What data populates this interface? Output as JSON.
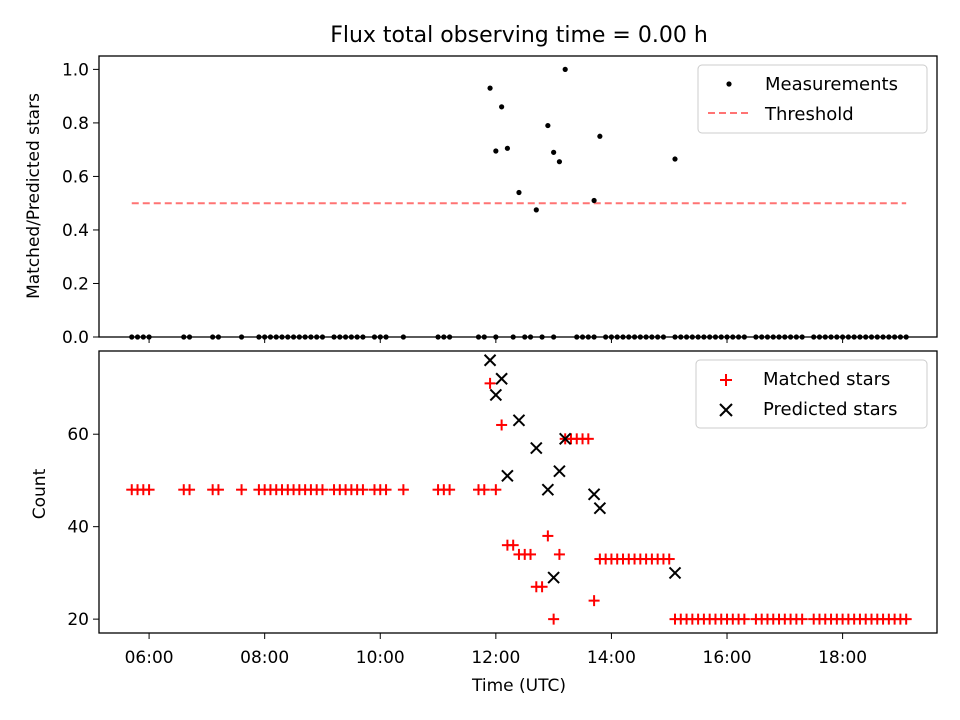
{
  "figure": {
    "title": "Flux total observing time = 0.00 h",
    "xlabel": "Time (UTC)",
    "x_ticks": [
      "06:00",
      "08:00",
      "10:00",
      "12:00",
      "14:00",
      "16:00",
      "18:00"
    ]
  },
  "chart_data": [
    {
      "type": "scatter",
      "xlabel": "Time (UTC)",
      "ylabel": "Matched/Predicted stars",
      "xlim": [
        "05:08",
        "19:38"
      ],
      "ylim": [
        0.0,
        1.05
      ],
      "y_ticks": [
        "0.0",
        "0.2",
        "0.4",
        "0.6",
        "0.8",
        "1.0"
      ],
      "grid": false,
      "legend_position": "top-right",
      "legend": [
        "Measurements",
        "Threshold"
      ],
      "colors": {
        "measurements": "#000000",
        "threshold": "#ff7373"
      },
      "series": [
        {
          "name": "Measurements",
          "marker": "dot",
          "points": [
            [
              "05:42",
              0
            ],
            [
              "05:48",
              0
            ],
            [
              "05:54",
              0
            ],
            [
              "06:00",
              0
            ],
            [
              "06:36",
              0
            ],
            [
              "06:42",
              0
            ],
            [
              "07:06",
              0
            ],
            [
              "07:12",
              0
            ],
            [
              "07:36",
              0
            ],
            [
              "07:54",
              0
            ],
            [
              "08:00",
              0
            ],
            [
              "08:06",
              0
            ],
            [
              "08:12",
              0
            ],
            [
              "08:18",
              0
            ],
            [
              "08:24",
              0
            ],
            [
              "08:30",
              0
            ],
            [
              "08:36",
              0
            ],
            [
              "08:42",
              0
            ],
            [
              "08:48",
              0
            ],
            [
              "08:54",
              0
            ],
            [
              "09:00",
              0
            ],
            [
              "09:12",
              0
            ],
            [
              "09:18",
              0
            ],
            [
              "09:24",
              0
            ],
            [
              "09:30",
              0
            ],
            [
              "09:36",
              0
            ],
            [
              "09:42",
              0
            ],
            [
              "09:54",
              0
            ],
            [
              "10:00",
              0
            ],
            [
              "10:06",
              0
            ],
            [
              "10:24",
              0
            ],
            [
              "11:00",
              0
            ],
            [
              "11:06",
              0
            ],
            [
              "11:12",
              0
            ],
            [
              "11:42",
              0
            ],
            [
              "11:48",
              0
            ],
            [
              "12:00",
              0
            ],
            [
              "11:54",
              0.93
            ],
            [
              "12:00",
              0.695
            ],
            [
              "12:06",
              0.86
            ],
            [
              "12:12",
              0.705
            ],
            [
              "12:24",
              0.54
            ],
            [
              "12:42",
              0.475
            ],
            [
              "12:54",
              0.79
            ],
            [
              "13:00",
              0.69
            ],
            [
              "13:06",
              0.655
            ],
            [
              "13:12",
              1.0
            ],
            [
              "13:42",
              0.51
            ],
            [
              "13:48",
              0.75
            ],
            [
              "15:06",
              0.665
            ],
            [
              "12:18",
              0
            ],
            [
              "12:30",
              0
            ],
            [
              "12:36",
              0
            ],
            [
              "12:48",
              0
            ],
            [
              "13:00",
              0
            ],
            [
              "13:24",
              0
            ],
            [
              "13:30",
              0
            ],
            [
              "13:36",
              0
            ],
            [
              "13:42",
              0
            ],
            [
              "13:54",
              0
            ],
            [
              "14:00",
              0
            ],
            [
              "14:06",
              0
            ],
            [
              "14:12",
              0
            ],
            [
              "14:18",
              0
            ],
            [
              "14:24",
              0
            ],
            [
              "14:30",
              0
            ],
            [
              "14:36",
              0
            ],
            [
              "14:42",
              0
            ],
            [
              "14:48",
              0
            ],
            [
              "14:54",
              0
            ],
            [
              "15:06",
              0
            ],
            [
              "15:12",
              0
            ],
            [
              "15:18",
              0
            ],
            [
              "15:24",
              0
            ],
            [
              "15:30",
              0
            ],
            [
              "15:36",
              0
            ],
            [
              "15:42",
              0
            ],
            [
              "15:48",
              0
            ],
            [
              "15:54",
              0
            ],
            [
              "16:00",
              0
            ],
            [
              "16:06",
              0
            ],
            [
              "16:12",
              0
            ],
            [
              "16:18",
              0
            ],
            [
              "16:30",
              0
            ],
            [
              "16:36",
              0
            ],
            [
              "16:42",
              0
            ],
            [
              "16:48",
              0
            ],
            [
              "16:54",
              0
            ],
            [
              "17:00",
              0
            ],
            [
              "17:06",
              0
            ],
            [
              "17:12",
              0
            ],
            [
              "17:18",
              0
            ],
            [
              "17:30",
              0
            ],
            [
              "17:36",
              0
            ],
            [
              "17:42",
              0
            ],
            [
              "17:48",
              0
            ],
            [
              "17:54",
              0
            ],
            [
              "18:00",
              0
            ],
            [
              "18:06",
              0
            ],
            [
              "18:12",
              0
            ],
            [
              "18:18",
              0
            ],
            [
              "18:24",
              0
            ],
            [
              "18:30",
              0
            ],
            [
              "18:36",
              0
            ],
            [
              "18:42",
              0
            ],
            [
              "18:48",
              0
            ],
            [
              "18:54",
              0
            ],
            [
              "19:00",
              0
            ],
            [
              "19:06",
              0
            ]
          ]
        },
        {
          "name": "Threshold",
          "style": "dashed",
          "points": [
            [
              "05:42",
              0.5
            ],
            [
              "19:06",
              0.5
            ]
          ]
        }
      ]
    },
    {
      "type": "scatter",
      "xlabel": "Time (UTC)",
      "ylabel": "Count",
      "xlim": [
        "05:08",
        "19:38"
      ],
      "ylim": [
        17,
        78
      ],
      "y_ticks": [
        "20",
        "40",
        "60"
      ],
      "grid": false,
      "legend_position": "top-right",
      "legend": [
        "Matched stars",
        "Predicted stars"
      ],
      "colors": {
        "matched": "#ff0000",
        "predicted": "#000000"
      },
      "series": [
        {
          "name": "Matched stars",
          "marker": "plus",
          "points": [
            [
              "05:42",
              48
            ],
            [
              "05:48",
              48
            ],
            [
              "05:54",
              48
            ],
            [
              "06:00",
              48
            ],
            [
              "06:36",
              48
            ],
            [
              "06:42",
              48
            ],
            [
              "07:06",
              48
            ],
            [
              "07:12",
              48
            ],
            [
              "07:36",
              48
            ],
            [
              "07:54",
              48
            ],
            [
              "08:00",
              48
            ],
            [
              "08:06",
              48
            ],
            [
              "08:12",
              48
            ],
            [
              "08:18",
              48
            ],
            [
              "08:24",
              48
            ],
            [
              "08:30",
              48
            ],
            [
              "08:36",
              48
            ],
            [
              "08:42",
              48
            ],
            [
              "08:48",
              48
            ],
            [
              "08:54",
              48
            ],
            [
              "09:00",
              48
            ],
            [
              "09:12",
              48
            ],
            [
              "09:18",
              48
            ],
            [
              "09:24",
              48
            ],
            [
              "09:30",
              48
            ],
            [
              "09:36",
              48
            ],
            [
              "09:42",
              48
            ],
            [
              "09:54",
              48
            ],
            [
              "10:00",
              48
            ],
            [
              "10:06",
              48
            ],
            [
              "10:24",
              48
            ],
            [
              "11:00",
              48
            ],
            [
              "11:06",
              48
            ],
            [
              "11:12",
              48
            ],
            [
              "11:42",
              48
            ],
            [
              "11:48",
              48
            ],
            [
              "12:00",
              48
            ],
            [
              "11:54",
              71
            ],
            [
              "12:06",
              62
            ],
            [
              "12:12",
              36
            ],
            [
              "12:18",
              36
            ],
            [
              "12:24",
              34
            ],
            [
              "12:30",
              34
            ],
            [
              "12:36",
              34
            ],
            [
              "12:42",
              27
            ],
            [
              "12:48",
              27
            ],
            [
              "12:54",
              38
            ],
            [
              "13:00",
              20
            ],
            [
              "13:06",
              34
            ],
            [
              "13:12",
              59
            ],
            [
              "13:18",
              59
            ],
            [
              "13:24",
              59
            ],
            [
              "13:30",
              59
            ],
            [
              "13:36",
              59
            ],
            [
              "13:42",
              24
            ],
            [
              "13:48",
              33
            ],
            [
              "13:54",
              33
            ],
            [
              "14:00",
              33
            ],
            [
              "14:06",
              33
            ],
            [
              "14:12",
              33
            ],
            [
              "14:18",
              33
            ],
            [
              "14:24",
              33
            ],
            [
              "14:30",
              33
            ],
            [
              "14:36",
              33
            ],
            [
              "14:42",
              33
            ],
            [
              "14:48",
              33
            ],
            [
              "14:54",
              33
            ],
            [
              "15:00",
              33
            ],
            [
              "15:06",
              20
            ],
            [
              "15:12",
              20
            ],
            [
              "15:18",
              20
            ],
            [
              "15:24",
              20
            ],
            [
              "15:30",
              20
            ],
            [
              "15:36",
              20
            ],
            [
              "15:42",
              20
            ],
            [
              "15:48",
              20
            ],
            [
              "15:54",
              20
            ],
            [
              "16:00",
              20
            ],
            [
              "16:06",
              20
            ],
            [
              "16:12",
              20
            ],
            [
              "16:18",
              20
            ],
            [
              "16:30",
              20
            ],
            [
              "16:36",
              20
            ],
            [
              "16:42",
              20
            ],
            [
              "16:48",
              20
            ],
            [
              "16:54",
              20
            ],
            [
              "17:00",
              20
            ],
            [
              "17:06",
              20
            ],
            [
              "17:12",
              20
            ],
            [
              "17:18",
              20
            ],
            [
              "17:30",
              20
            ],
            [
              "17:36",
              20
            ],
            [
              "17:42",
              20
            ],
            [
              "17:48",
              20
            ],
            [
              "17:54",
              20
            ],
            [
              "18:00",
              20
            ],
            [
              "18:06",
              20
            ],
            [
              "18:12",
              20
            ],
            [
              "18:18",
              20
            ],
            [
              "18:24",
              20
            ],
            [
              "18:30",
              20
            ],
            [
              "18:36",
              20
            ],
            [
              "18:42",
              20
            ],
            [
              "18:48",
              20
            ],
            [
              "18:54",
              20
            ],
            [
              "19:00",
              20
            ],
            [
              "19:06",
              20
            ]
          ]
        },
        {
          "name": "Predicted stars",
          "marker": "x",
          "points": [
            [
              "11:54",
              76
            ],
            [
              "12:00",
              68.5
            ],
            [
              "12:06",
              72
            ],
            [
              "12:12",
              51
            ],
            [
              "12:24",
              63
            ],
            [
              "12:42",
              57
            ],
            [
              "12:54",
              48
            ],
            [
              "13:00",
              29
            ],
            [
              "13:06",
              52
            ],
            [
              "13:12",
              59
            ],
            [
              "13:42",
              47
            ],
            [
              "13:48",
              44
            ],
            [
              "15:06",
              30
            ]
          ]
        }
      ]
    }
  ]
}
